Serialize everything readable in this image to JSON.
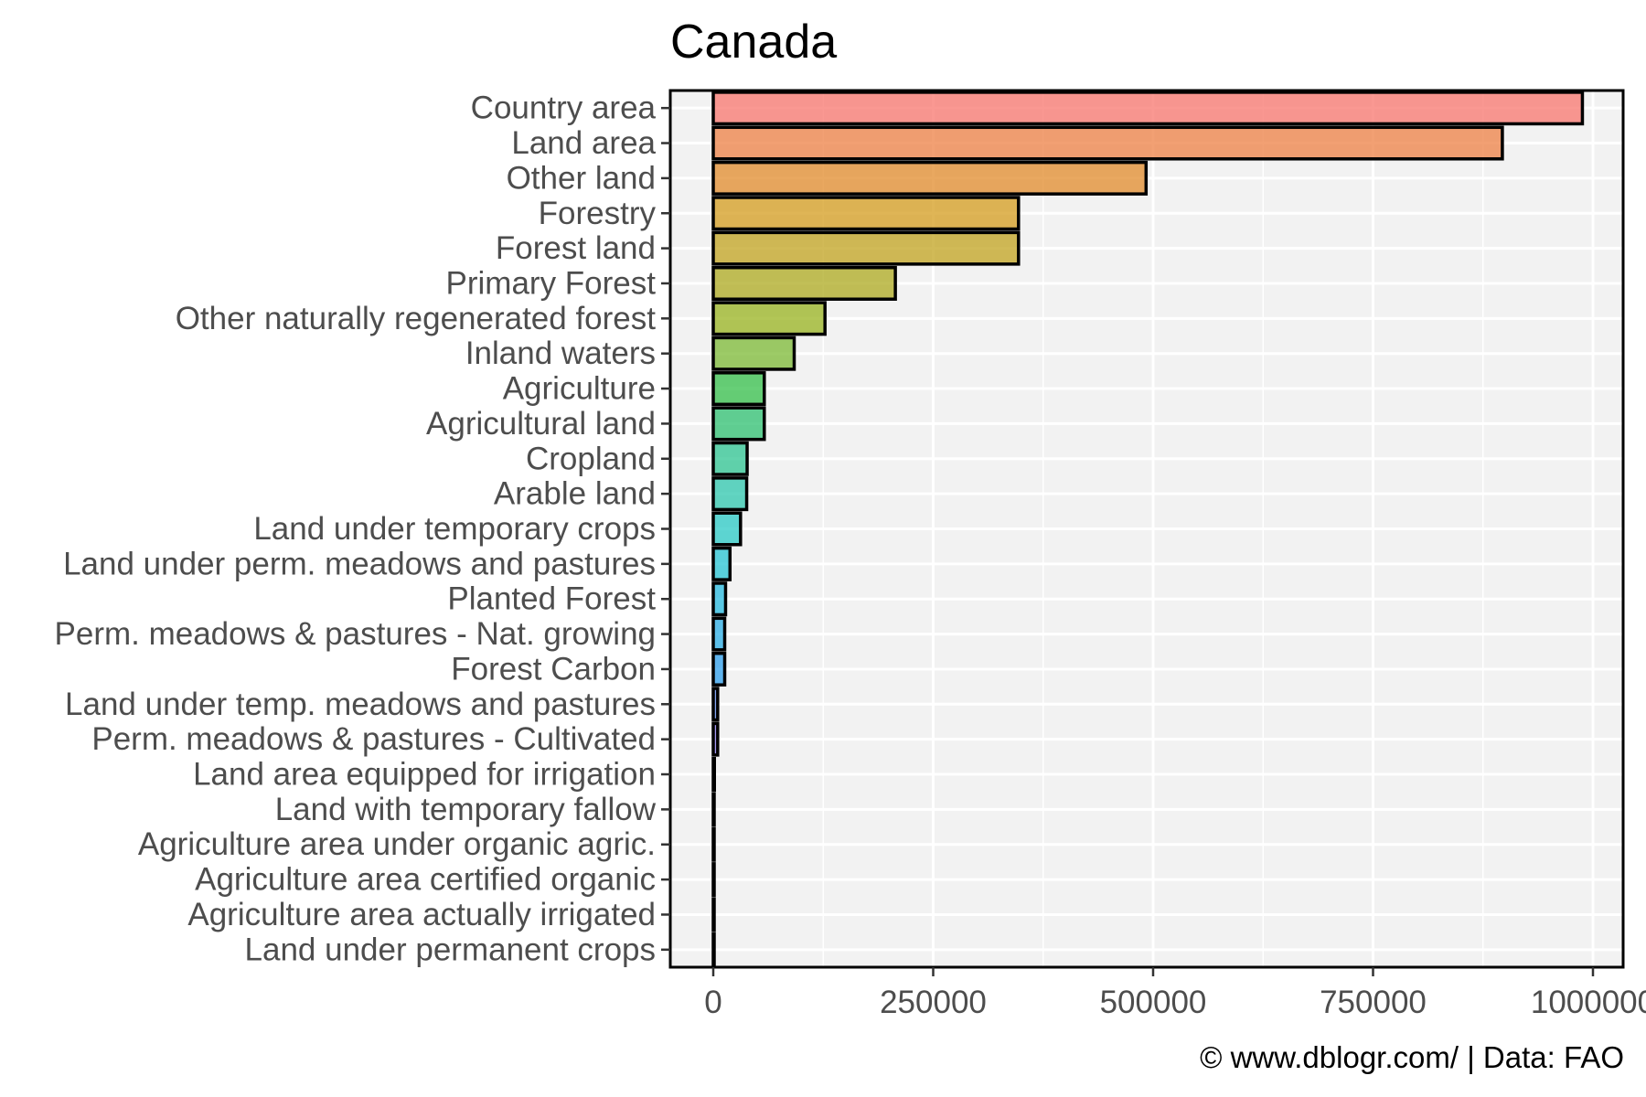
{
  "chart_data": {
    "type": "bar",
    "orientation": "horizontal",
    "title": "Canada",
    "xlabel": "",
    "ylabel": "",
    "caption": "© www.dblogr.com/  |  Data: FAO",
    "xlim": [
      0,
      1000000
    ],
    "x_ticks": [
      0,
      250000,
      500000,
      750000,
      1000000
    ],
    "x_tick_labels": [
      "0",
      "250000",
      "500000",
      "750000",
      "1000000"
    ],
    "grid": true,
    "legend": "none",
    "categories": [
      "Country area",
      "Land area",
      "Other land",
      "Forestry",
      "Forest land",
      "Primary Forest",
      "Other naturally regenerated forest",
      "Inland waters",
      "Agriculture",
      "Agricultural land",
      "Cropland",
      "Arable land",
      "Land under temporary crops",
      "Land under perm. meadows and pastures",
      "Planted Forest",
      "Perm. meadows & pastures - Nat. growing",
      "Forest Carbon",
      "Land under temp. meadows and pastures",
      "Perm. meadows & pastures - Cultivated",
      "Land area equipped for irrigation",
      "Land with temporary fallow",
      "Agriculture area under organic agric.",
      "Agriculture area certified organic",
      "Agriculture area actually irrigated",
      "Land under permanent crops"
    ],
    "values": [
      988000,
      897000,
      492000,
      347000,
      347000,
      207000,
      127000,
      92000,
      58000,
      58000,
      38500,
      38000,
      31000,
      19000,
      14000,
      13000,
      13000,
      5000,
      5000,
      1300,
      900,
      900,
      800,
      800,
      500
    ],
    "colors": [
      "#F8766D",
      "#EE8044",
      "#E28B2B",
      "#D49C1E",
      "#C2A31F",
      "#AEA91F",
      "#98B31F",
      "#7CBA34",
      "#34BF4A",
      "#2DC070",
      "#2EC492",
      "#2DC7AE",
      "#2AC9C5",
      "#26C4D4",
      "#25B9DF",
      "#2AADE6",
      "#2D9FEC",
      "#5E8AF0",
      "#8B7BF2",
      "#AE6DF0",
      "#C964E8",
      "#DE5DD6",
      "#EB5FC1",
      "#F265A8",
      "#F56C8C"
    ]
  }
}
